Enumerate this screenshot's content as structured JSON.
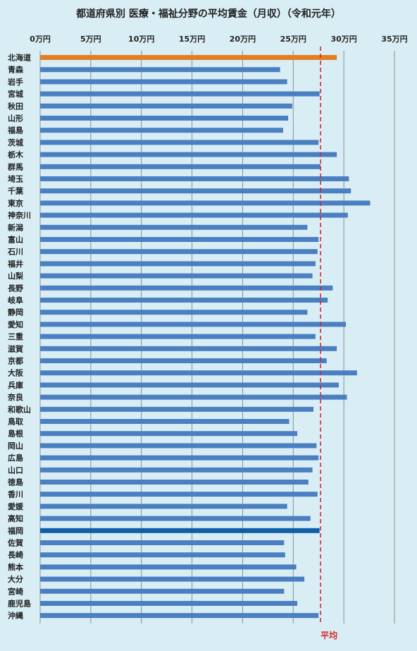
{
  "chart_data": {
    "type": "bar",
    "orientation": "horizontal",
    "title": "都道府県別 医療・福祉分野の平均賃金（月収）（令和元年）",
    "x_ticks": [
      "0万円",
      "5万円",
      "10万円",
      "15万円",
      "20万円",
      "25万円",
      "30万円",
      "35万円"
    ],
    "xlim": [
      0,
      35
    ],
    "grid": "vertical",
    "categories": [
      "北海道",
      "青森",
      "岩手",
      "宮城",
      "秋田",
      "山形",
      "福島",
      "茨城",
      "栃木",
      "群馬",
      "埼玉",
      "千葉",
      "東京",
      "神奈川",
      "新潟",
      "富山",
      "石川",
      "福井",
      "山梨",
      "長野",
      "岐阜",
      "静岡",
      "愛知",
      "三重",
      "滋賀",
      "京都",
      "大阪",
      "兵庫",
      "奈良",
      "和歌山",
      "鳥取",
      "島根",
      "岡山",
      "広島",
      "山口",
      "徳島",
      "香川",
      "愛媛",
      "高知",
      "福岡",
      "佐賀",
      "長崎",
      "熊本",
      "大分",
      "宮崎",
      "鹿児島",
      "沖縄"
    ],
    "values": [
      29.3,
      23.7,
      24.4,
      27.6,
      24.9,
      24.5,
      24.0,
      27.5,
      29.3,
      27.7,
      30.5,
      30.7,
      32.6,
      30.4,
      26.4,
      27.5,
      27.4,
      27.2,
      26.9,
      28.9,
      28.4,
      26.4,
      30.2,
      27.2,
      29.3,
      28.3,
      31.3,
      29.5,
      30.3,
      27.0,
      24.6,
      25.4,
      27.3,
      27.5,
      26.9,
      26.5,
      27.4,
      24.4,
      26.7,
      27.6,
      24.1,
      24.2,
      25.3,
      26.1,
      24.1,
      25.4,
      27.5
    ],
    "highlight": {
      "北海道": "#e57c22",
      "福岡": "#0f5fa8"
    },
    "default_color": "#4a7fc1",
    "average": {
      "label": "平均",
      "value": 27.7,
      "color": "#d9262b"
    }
  }
}
